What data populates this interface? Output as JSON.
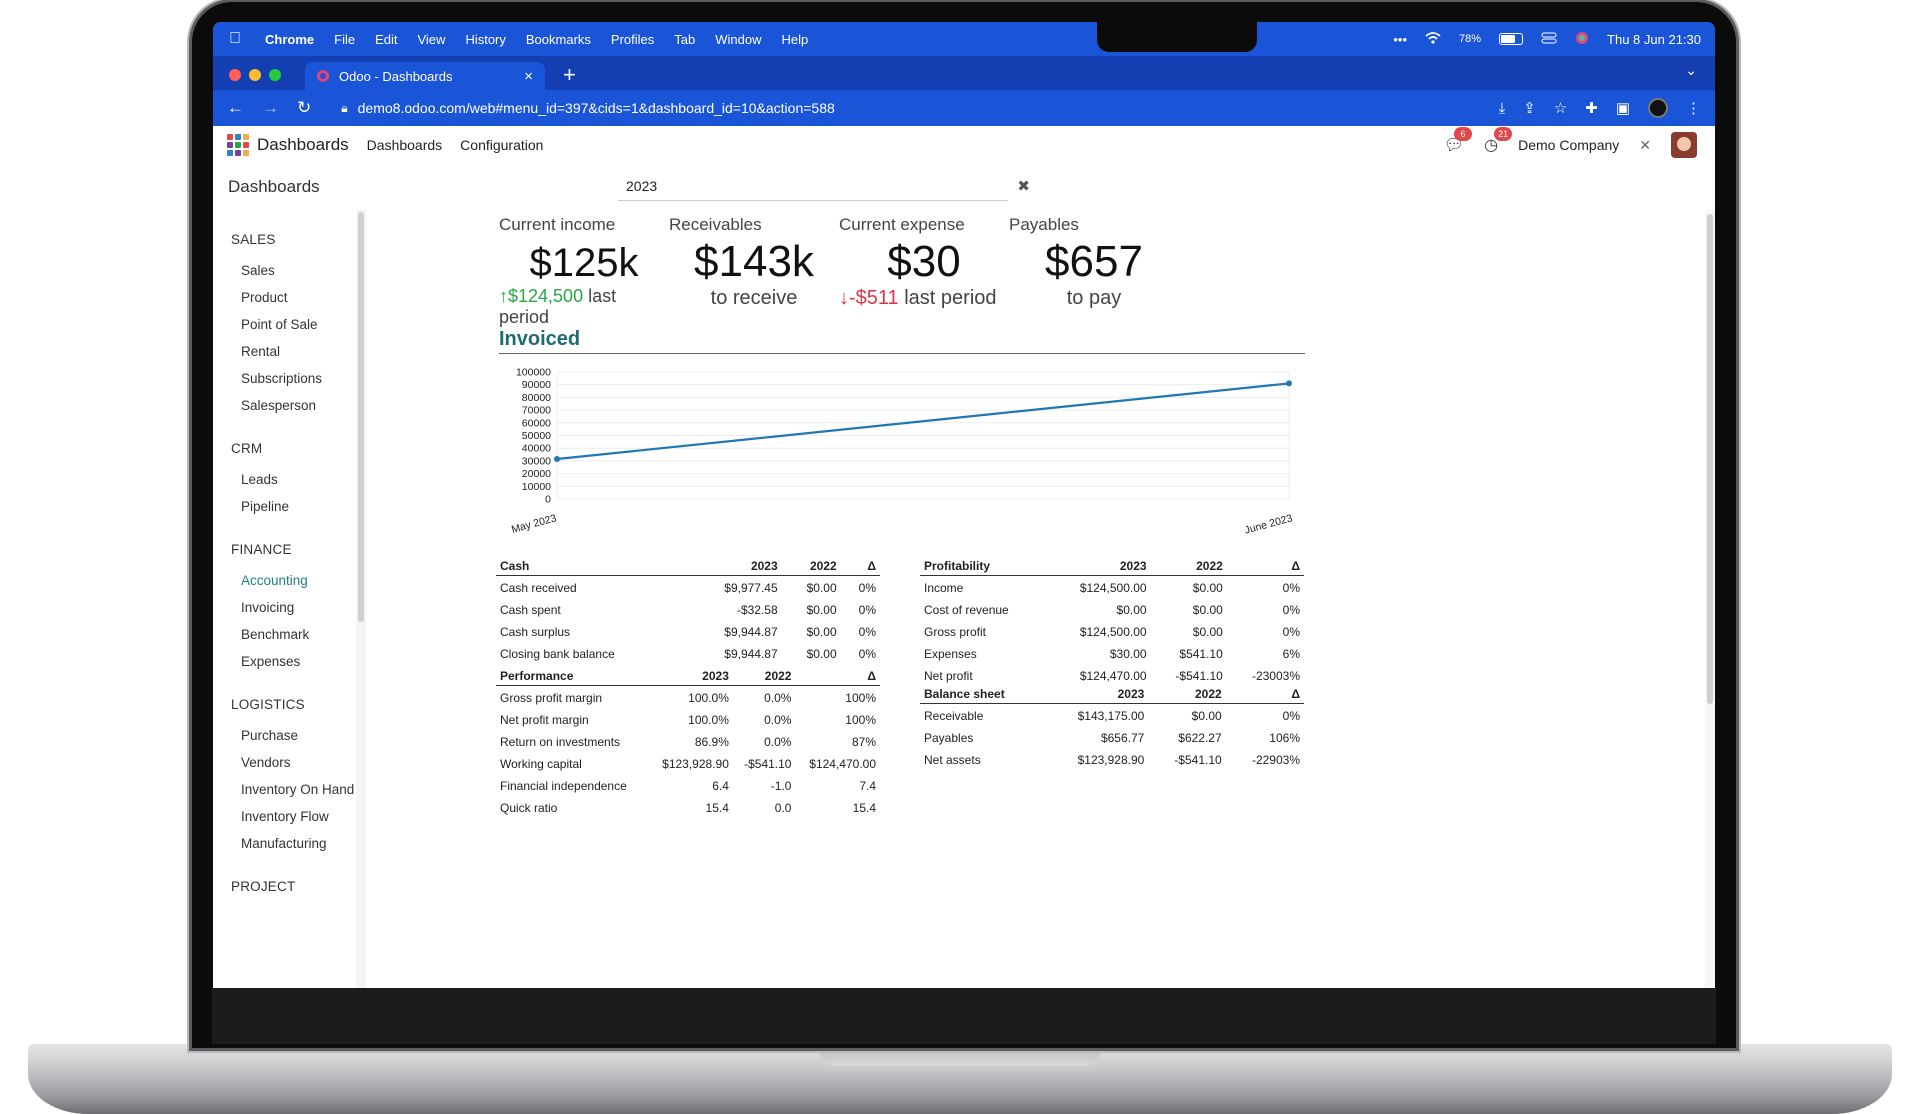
{
  "menubar": {
    "app": "Chrome",
    "items": [
      "File",
      "Edit",
      "View",
      "History",
      "Bookmarks",
      "Profiles",
      "Tab",
      "Window",
      "Help"
    ],
    "battery": "78%",
    "datetime": "Thu 8 Jun  21:30"
  },
  "browser": {
    "tab_title": "Odoo - Dashboards",
    "url": "demo8.odoo.com/web#menu_id=397&cids=1&dashboard_id=10&action=588"
  },
  "odoo": {
    "app_name": "Dashboards",
    "nav": [
      "Dashboards",
      "Configuration"
    ],
    "messages_count": "6",
    "activities_count": "21",
    "company": "Demo Company"
  },
  "control_panel": {
    "breadcrumb": "Dashboards",
    "search_facet": "2023"
  },
  "sidebar": {
    "sections": [
      {
        "title": "SALES",
        "items": [
          "Sales",
          "Product",
          "Point of Sale",
          "Rental",
          "Subscriptions",
          "Salesperson"
        ]
      },
      {
        "title": "CRM",
        "items": [
          "Leads",
          "Pipeline"
        ]
      },
      {
        "title": "FINANCE",
        "items": [
          "Accounting",
          "Invoicing",
          "Benchmark",
          "Expenses"
        ]
      },
      {
        "title": "LOGISTICS",
        "items": [
          "Purchase",
          "Vendors",
          "Inventory On Hand",
          "Inventory Flow",
          "Manufacturing"
        ]
      },
      {
        "title": "PROJECT",
        "items": []
      }
    ],
    "active_item": "Accounting"
  },
  "kpis": [
    {
      "label": "Current income",
      "value": "$125k",
      "delta": "$124,500",
      "delta_dir": "up",
      "suffix": "last period"
    },
    {
      "label": "Receivables",
      "value": "$143k",
      "sub": "to receive"
    },
    {
      "label": "Current expense",
      "value": "$30",
      "delta": "-$511",
      "delta_dir": "down",
      "suffix": "last period"
    },
    {
      "label": "Payables",
      "value": "$657",
      "sub": "to pay"
    }
  ],
  "chart_section_title": "Invoiced",
  "chart_data": {
    "type": "line",
    "categories": [
      "May 2023",
      "June 2023"
    ],
    "series": [
      {
        "values": [
          31500,
          91000
        ],
        "color": "#1f77b4"
      }
    ],
    "ylim": [
      0,
      100000
    ],
    "yticks": [
      0,
      10000,
      20000,
      30000,
      40000,
      50000,
      60000,
      70000,
      80000,
      90000,
      100000
    ],
    "grid": true
  },
  "tables": {
    "cash": {
      "headers": [
        "Cash",
        "2023",
        "2022",
        "Δ"
      ],
      "rows": [
        [
          "Cash received",
          "$9,977.45",
          "$0.00",
          "0%"
        ],
        [
          "Cash spent",
          "-$32.58",
          "$0.00",
          "0%"
        ],
        [
          "Cash surplus",
          "$9,944.87",
          "$0.00",
          "0%"
        ],
        [
          "Closing bank balance",
          "$9,944.87",
          "$0.00",
          "0%"
        ]
      ]
    },
    "performance": {
      "headers": [
        "Performance",
        "2023",
        "2022",
        "Δ"
      ],
      "rows": [
        [
          "Gross profit margin",
          "100.0%",
          "0.0%",
          "100%"
        ],
        [
          "Net profit margin",
          "100.0%",
          "0.0%",
          "100%"
        ],
        [
          "Return on investments",
          "86.9%",
          "0.0%",
          "87%"
        ],
        [
          "Working capital",
          "$123,928.90",
          "-$541.10",
          "$124,470.00"
        ],
        [
          "Financial independence",
          "6.4",
          "-1.0",
          "7.4"
        ],
        [
          "Quick ratio",
          "15.4",
          "0.0",
          "15.4"
        ]
      ]
    },
    "profitability": {
      "headers": [
        "Profitability",
        "2023",
        "2022",
        "Δ"
      ],
      "rows": [
        [
          "Income",
          "$124,500.00",
          "$0.00",
          "0%"
        ],
        [
          "Cost of revenue",
          "$0.00",
          "$0.00",
          "0%"
        ],
        [
          "Gross profit",
          "$124,500.00",
          "$0.00",
          "0%"
        ],
        [
          "Expenses",
          "$30.00",
          "$541.10",
          "6%"
        ],
        [
          "Net profit",
          "$124,470.00",
          "-$541.10",
          "-23003%"
        ]
      ]
    },
    "balance": {
      "headers": [
        "Balance sheet",
        "2023",
        "2022",
        "Δ"
      ],
      "rows": [
        [
          "Receivable",
          "$143,175.00",
          "$0.00",
          "0%"
        ],
        [
          "Payables",
          "$656.77",
          "$622.27",
          "106%"
        ],
        [
          "Net assets",
          "$123,928.90",
          "-$541.10",
          "-22903%"
        ]
      ]
    }
  }
}
